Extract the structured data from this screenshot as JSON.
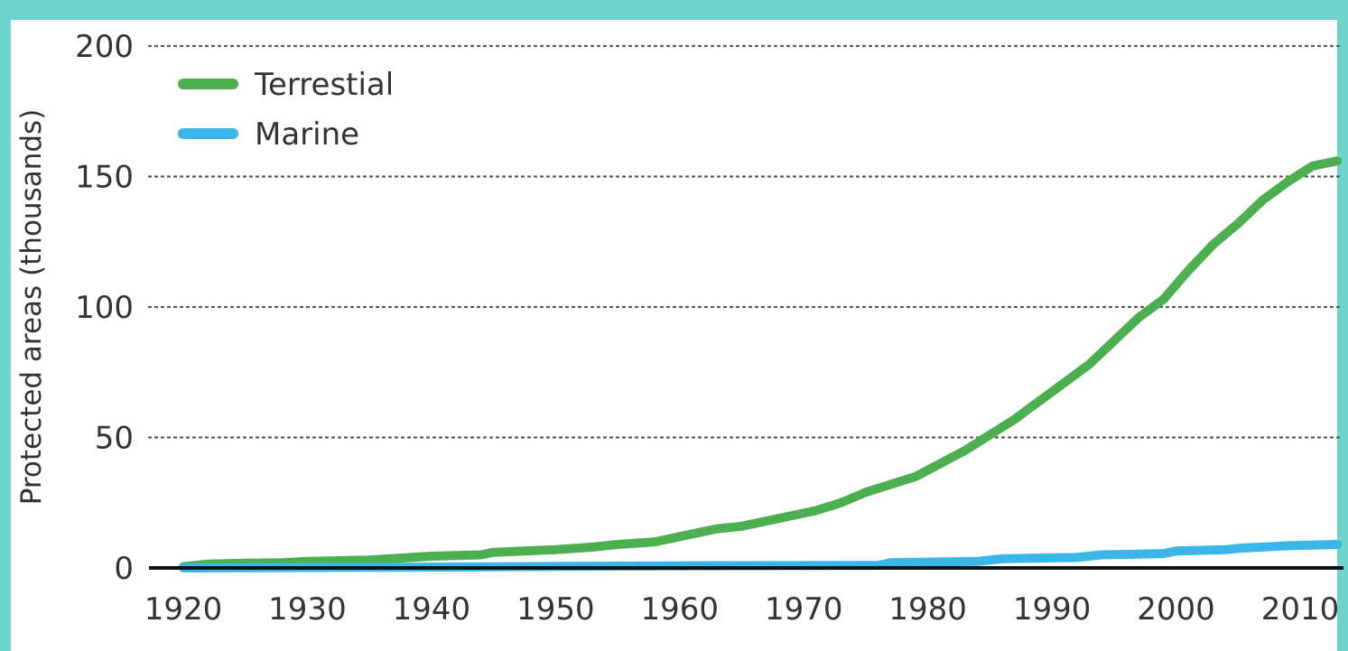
{
  "colors": {
    "frame": "#6fd3cf",
    "terrestial": "#4caf50",
    "marine": "#3ab6e8",
    "grid": "#555555",
    "axis": "#111111",
    "text": "#333333"
  },
  "chart_data": {
    "type": "line",
    "ylabel": "Protected areas (thousands)",
    "xlabel": "",
    "xlim": [
      1917,
      2013
    ],
    "ylim": [
      0,
      200
    ],
    "xticks": [
      1920,
      1930,
      1940,
      1950,
      1960,
      1970,
      1980,
      1990,
      2000,
      2010
    ],
    "yticks": [
      0,
      50,
      100,
      150,
      200
    ],
    "grid": "horizontal dotted",
    "legend_position": "top-left",
    "series": [
      {
        "name": "Terrestial",
        "color": "#4caf50",
        "x": [
          1920,
          1922,
          1925,
          1928,
          1930,
          1935,
          1940,
          1944,
          1945,
          1950,
          1953,
          1955,
          1958,
          1960,
          1963,
          1965,
          1968,
          1971,
          1973,
          1975,
          1977,
          1979,
          1981,
          1983,
          1985,
          1987,
          1989,
          1991,
          1993,
          1995,
          1997,
          1999,
          2001,
          2003,
          2005,
          2007,
          2009,
          2011,
          2013
        ],
        "y": [
          0.5,
          1.5,
          1.8,
          2,
          2.5,
          3,
          4.5,
          5,
          6,
          7,
          8,
          9,
          10,
          12,
          15,
          16,
          19,
          22,
          25,
          29,
          32,
          35,
          40,
          45,
          51,
          57,
          64,
          71,
          78,
          87,
          96,
          103,
          114,
          124,
          132,
          141,
          148,
          154,
          156
        ]
      },
      {
        "name": "Marine",
        "color": "#3ab6e8",
        "x": [
          1920,
          1940,
          1960,
          1976,
          1977,
          1984,
          1986,
          1992,
          1994,
          1999,
          2000,
          2004,
          2005,
          2009,
          2013
        ],
        "y": [
          0,
          0.3,
          0.8,
          1,
          2,
          2.5,
          3.5,
          4,
          5,
          5.5,
          6.5,
          7,
          7.5,
          8.5,
          9
        ]
      }
    ]
  }
}
